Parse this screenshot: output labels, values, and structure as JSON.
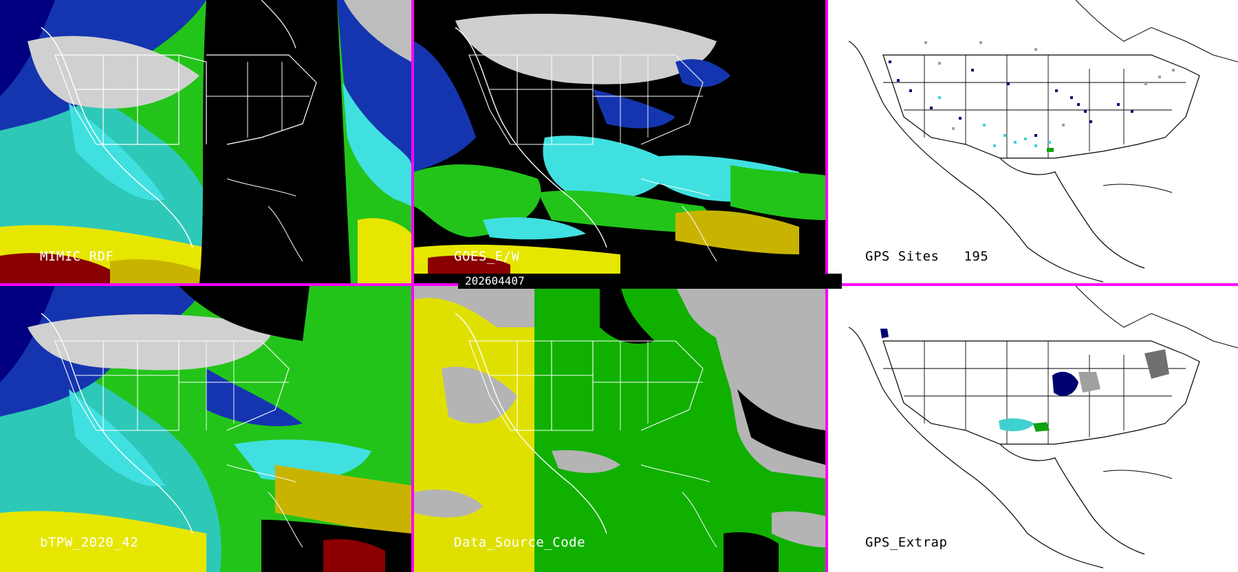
{
  "panels": [
    {
      "id": "mimic-rdf",
      "label": "MIMIC RDF"
    },
    {
      "id": "goes-ew",
      "label": "GOES_E/W"
    },
    {
      "id": "gps-sites",
      "label": "GPS Sites",
      "count": "195"
    },
    {
      "id": "btpw",
      "label": "bTPW_2020_42"
    },
    {
      "id": "data-source-code",
      "label": "Data_Source_Code"
    },
    {
      "id": "gps-extrap",
      "label": "GPS_Extrap"
    }
  ],
  "timestamp": "202604407",
  "colors": {
    "border": "#ff00ff",
    "tpw_palette": [
      "#8a0000",
      "#c8b400",
      "#e6e600",
      "#22c41a",
      "#40e0e0",
      "#1040c8",
      "#000080"
    ],
    "source_yellow": "#e0e000",
    "source_green": "#10b000",
    "source_gray": "#b4b4b4"
  }
}
